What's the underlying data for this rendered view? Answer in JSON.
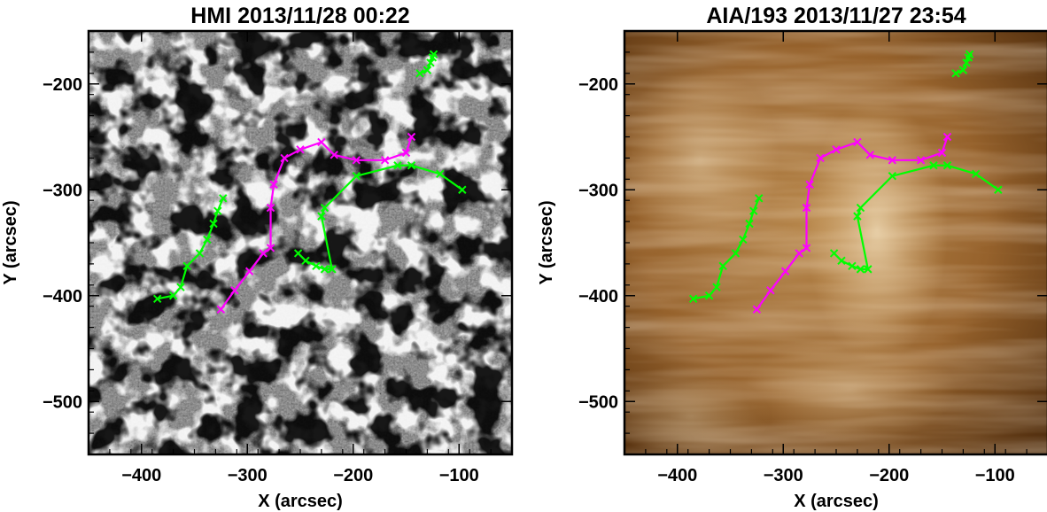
{
  "chart_data": [
    {
      "type": "scatter",
      "title": "HMI 2013/11/28 00:22",
      "xlabel": "X (arcsec)",
      "ylabel": "Y (arcsec)",
      "xlim": [
        -450,
        -50
      ],
      "ylim": [
        -550,
        -150
      ],
      "xticks": [
        -400,
        -300,
        -200,
        -100
      ],
      "yticks": [
        -500,
        -400,
        -300,
        -200
      ],
      "xtick_labels": [
        "−400",
        "−300",
        "−200",
        "−100"
      ],
      "ytick_labels": [
        "−500",
        "−400",
        "−300",
        "−200"
      ],
      "background": "grayscale magnetogram",
      "series": [
        {
          "color": "#ff00ff",
          "x": [
            -325,
            -312,
            -298,
            -285,
            -278,
            -278,
            -275,
            -265,
            -250,
            -230,
            -218,
            -197,
            -170,
            -150,
            -145
          ],
          "y": [
            -413,
            -395,
            -377,
            -360,
            -355,
            -317,
            -295,
            -270,
            -262,
            -255,
            -267,
            -272,
            -272,
            -265,
            -250
          ]
        },
        {
          "color": "#00ff00",
          "x": [
            -385,
            -370,
            -363,
            -357,
            -345,
            -338,
            -332,
            -328,
            -323
          ],
          "y": [
            -403,
            -400,
            -392,
            -372,
            -360,
            -347,
            -332,
            -320,
            -308
          ]
        },
        {
          "color": "#00ff00",
          "x": [
            -252,
            -245,
            -235,
            -227,
            -220,
            -230,
            -227,
            -197,
            -158,
            -145,
            -118,
            -97
          ],
          "y": [
            -360,
            -367,
            -372,
            -375,
            -375,
            -325,
            -317,
            -287,
            -277,
            -277,
            -285,
            -300
          ]
        },
        {
          "color": "#00ff00",
          "x": [
            -137,
            -130,
            -127,
            -125,
            -124
          ],
          "y": [
            -190,
            -187,
            -180,
            -175,
            -172
          ]
        }
      ]
    },
    {
      "type": "scatter",
      "title": "AIA/193 2013/11/27 23:54",
      "xlabel": "X (arcsec)",
      "ylabel": "Y (arcsec)",
      "xlim": [
        -450,
        -50
      ],
      "ylim": [
        -550,
        -150
      ],
      "xticks": [
        -400,
        -300,
        -200,
        -100
      ],
      "yticks": [
        -500,
        -400,
        -300,
        -200
      ],
      "xtick_labels": [
        "−400",
        "−300",
        "−200",
        "−100"
      ],
      "ytick_labels": [
        "−500",
        "−400",
        "−300",
        "−200"
      ],
      "background": "copper EUV image",
      "series": [
        {
          "color": "#ff00ff",
          "x": [
            -325,
            -312,
            -298,
            -285,
            -278,
            -278,
            -275,
            -265,
            -250,
            -230,
            -218,
            -197,
            -170,
            -150,
            -145
          ],
          "y": [
            -413,
            -395,
            -377,
            -360,
            -355,
            -317,
            -295,
            -270,
            -262,
            -255,
            -267,
            -272,
            -272,
            -265,
            -250
          ]
        },
        {
          "color": "#00ff00",
          "x": [
            -385,
            -370,
            -363,
            -357,
            -345,
            -338,
            -332,
            -328,
            -323
          ],
          "y": [
            -403,
            -400,
            -392,
            -372,
            -360,
            -347,
            -332,
            -320,
            -308
          ]
        },
        {
          "color": "#00ff00",
          "x": [
            -252,
            -245,
            -235,
            -227,
            -220,
            -230,
            -227,
            -197,
            -158,
            -145,
            -118,
            -97
          ],
          "y": [
            -360,
            -367,
            -372,
            -375,
            -375,
            -325,
            -317,
            -287,
            -277,
            -277,
            -285,
            -300
          ]
        },
        {
          "color": "#00ff00",
          "x": [
            -137,
            -130,
            -127,
            -125,
            -124
          ],
          "y": [
            -190,
            -187,
            -180,
            -175,
            -172
          ]
        }
      ]
    }
  ]
}
